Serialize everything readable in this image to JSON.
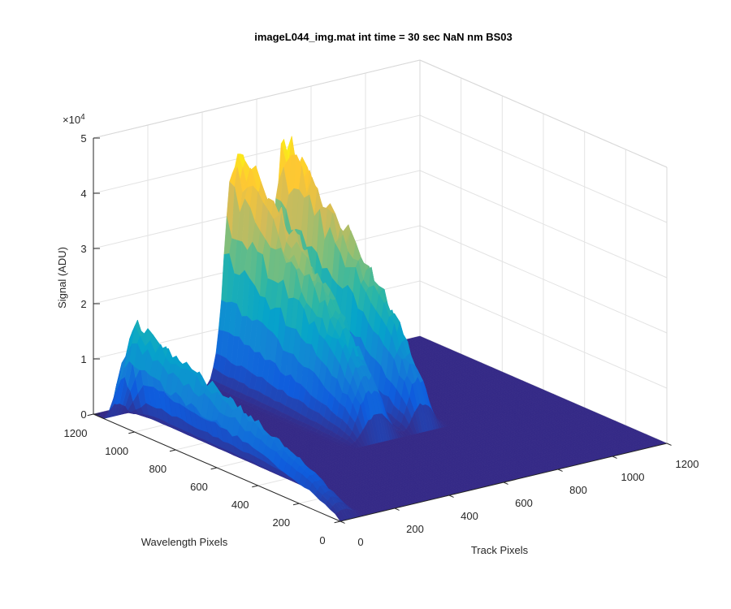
{
  "chart_data": {
    "type": "surface",
    "title": "imageL044_img.mat int time = 30 sec  NaN nm BS03",
    "xlabel": "Track Pixels",
    "ylabel": "Wavelength Pixels",
    "zlabel": "Signal (ADU)",
    "z_exponent_label": "×10",
    "z_exponent_power": "4",
    "xlim": [
      0,
      1200
    ],
    "ylim": [
      0,
      1200
    ],
    "zlim": [
      0,
      50000
    ],
    "x_ticks": [
      "0",
      "200",
      "400",
      "600",
      "800",
      "1000",
      "1200"
    ],
    "y_ticks": [
      "0",
      "200",
      "400",
      "600",
      "800",
      "1000",
      "1200"
    ],
    "z_ticks": [
      "0",
      "1",
      "2",
      "3",
      "4",
      "5"
    ],
    "grid": true,
    "box": true,
    "colormap": "parula",
    "colormap_stops": [
      "#352a87",
      "#0f5cdd",
      "#1481d6",
      "#06a4ca",
      "#2eb7a4",
      "#87bf77",
      "#d1bb59",
      "#fec832",
      "#f9fb0e"
    ],
    "features": [
      {
        "track_center": 30,
        "track_width": 40,
        "wavelength_range": [
          0,
          1100
        ],
        "peak_signal": 19000
      },
      {
        "track_center": 530,
        "track_width": 60,
        "wavelength_range": [
          500,
          1200
        ],
        "peak_signal": 40000
      },
      {
        "track_center": 700,
        "track_width": 45,
        "wavelength_range": [
          500,
          1200
        ],
        "peak_signal": 41000
      }
    ]
  }
}
